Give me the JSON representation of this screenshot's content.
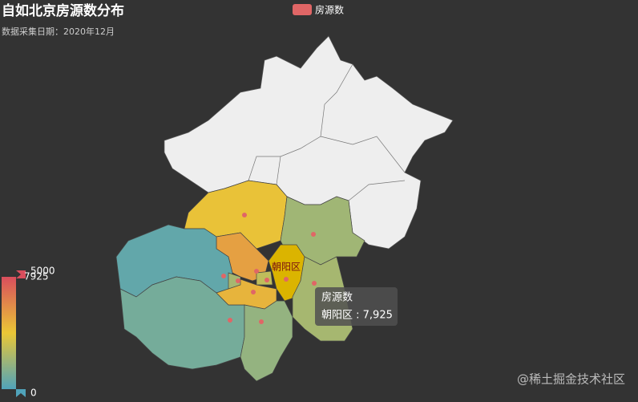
{
  "chart_data": {
    "type": "map",
    "title": "自如北京房源数分布",
    "subtitle": "数据采集日期：2020年12月",
    "series": [
      {
        "name": "房源数",
        "color": "#e06666",
        "categories": [
          null,
          null,
          null,
          null,
          null,
          null,
          null,
          null,
          "朝阳区",
          null,
          null
        ],
        "values": [
          2600,
          1300,
          3300,
          300,
          600,
          2900,
          1400,
          1800,
          7925,
          1100,
          1400
        ]
      }
    ],
    "visual_map": {
      "range": [
        0,
        5000
      ],
      "colors": [
        "#50a3ba",
        "#eac736",
        "#d94e5d"
      ],
      "handle": "7925"
    },
    "emphasis_color": "#dbb400",
    "tooltip": {
      "title": "房源数",
      "text": "朝阳区 : 7,925"
    },
    "watermark": "@稀土掘金技术社区"
  }
}
